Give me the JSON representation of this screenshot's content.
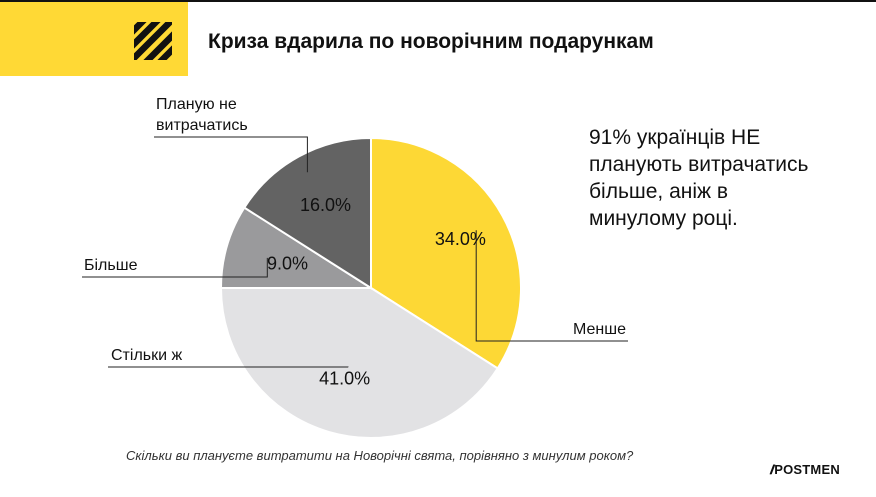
{
  "header": {
    "title": "Криза вдарила по новорічним подарункам"
  },
  "chart_data": {
    "type": "pie",
    "title": "Криза вдарила по новорічним подарункам",
    "subtitle": "Скільки ви плануєте витратити на Новорічні свята, порівняно з минулим роком?",
    "categories": [
      "Менше",
      "Стільки ж",
      "Більше",
      "Планую не витрачатись"
    ],
    "category_lines": [
      [
        "Менше"
      ],
      [
        "Стільки ж"
      ],
      [
        "Більше"
      ],
      [
        "Планую не",
        "витрачатись"
      ]
    ],
    "values": [
      34.0,
      41.0,
      9.0,
      16.0
    ],
    "value_labels": [
      "34.0%",
      "41.0%",
      "9.0%",
      "16.0%"
    ],
    "colors": [
      "#FDD835",
      "#E2E2E4",
      "#9A9A9C",
      "#636363"
    ],
    "start": "12 o'clock",
    "direction": "clockwise",
    "legend": "none"
  },
  "callout": {
    "lines": [
      "91% українців НЕ",
      "планують витрачатись",
      "більше, аніж в",
      "минулому році."
    ]
  },
  "footer": {
    "question": "Скільки ви плануєте витратити на Новорічні свята, порівняно з минулим роком?",
    "brand": "POSTMEN",
    "brand_slashes": "//"
  }
}
